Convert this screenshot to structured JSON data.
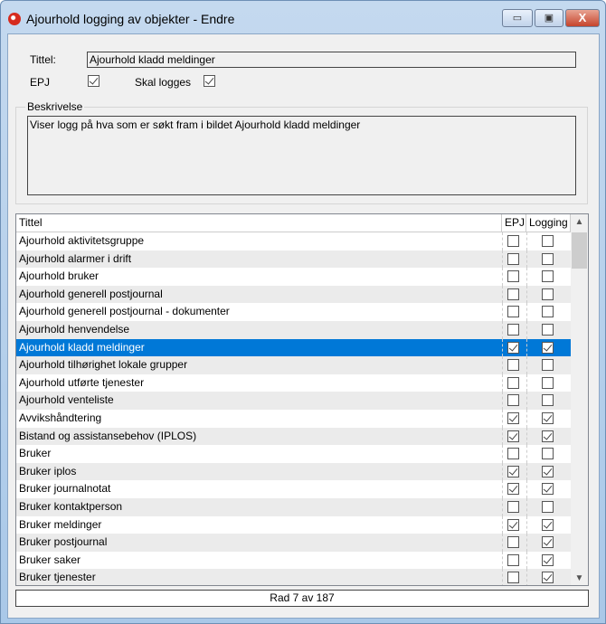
{
  "window": {
    "title": "Ajourhold logging av objekter - Endre",
    "minimize": "▭",
    "maximize": "▣",
    "close": "X"
  },
  "form": {
    "title_label": "Tittel:",
    "title_value": "Ajourhold kladd meldinger",
    "epj_label": "EPJ",
    "epj_checked": true,
    "log_label": "Skal logges",
    "log_checked": true,
    "desc_label": "Beskrivelse",
    "desc_value": "Viser logg på hva som er søkt fram i bildet Ajourhold kladd meldinger"
  },
  "list": {
    "columns": [
      "Tittel",
      "EPJ",
      "Logging"
    ],
    "selected_index": 6,
    "rows": [
      {
        "title": "Ajourhold aktivitetsgruppe",
        "epj": false,
        "logging": false
      },
      {
        "title": "Ajourhold alarmer i drift",
        "epj": false,
        "logging": false
      },
      {
        "title": "Ajourhold bruker",
        "epj": false,
        "logging": false
      },
      {
        "title": "Ajourhold generell postjournal",
        "epj": false,
        "logging": false
      },
      {
        "title": "Ajourhold generell postjournal - dokumenter",
        "epj": false,
        "logging": false
      },
      {
        "title": "Ajourhold henvendelse",
        "epj": false,
        "logging": false
      },
      {
        "title": "Ajourhold kladd meldinger",
        "epj": true,
        "logging": true
      },
      {
        "title": "Ajourhold tilhørighet lokale grupper",
        "epj": false,
        "logging": false
      },
      {
        "title": "Ajourhold utførte tjenester",
        "epj": false,
        "logging": false
      },
      {
        "title": "Ajourhold venteliste",
        "epj": false,
        "logging": false
      },
      {
        "title": "Avvikshåndtering",
        "epj": true,
        "logging": true
      },
      {
        "title": "Bistand og assistansebehov (IPLOS)",
        "epj": true,
        "logging": true
      },
      {
        "title": "Bruker",
        "epj": false,
        "logging": false
      },
      {
        "title": "Bruker iplos",
        "epj": true,
        "logging": true
      },
      {
        "title": "Bruker journalnotat",
        "epj": true,
        "logging": true
      },
      {
        "title": "Bruker kontaktperson",
        "epj": false,
        "logging": false
      },
      {
        "title": "Bruker meldinger",
        "epj": true,
        "logging": true
      },
      {
        "title": "Bruker postjournal",
        "epj": false,
        "logging": true
      },
      {
        "title": "Bruker saker",
        "epj": false,
        "logging": true
      },
      {
        "title": "Bruker tjenester",
        "epj": false,
        "logging": true
      }
    ]
  },
  "status": "Rad 7 av 187"
}
